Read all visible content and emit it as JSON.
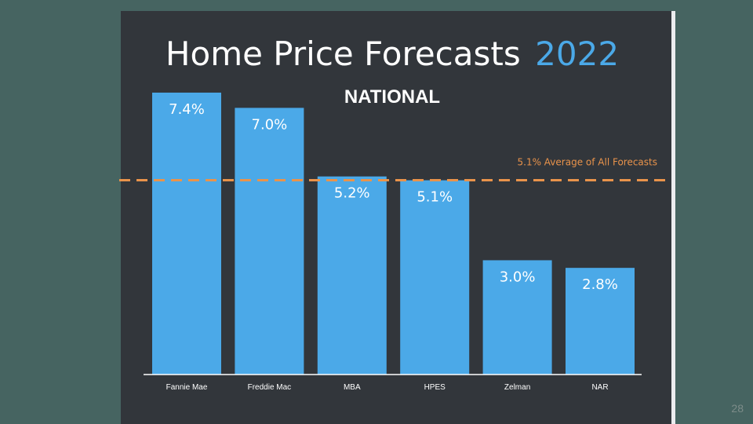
{
  "title": {
    "main": "Home Price Forecasts",
    "year": "2022"
  },
  "subtitle": "NATIONAL",
  "slide_number": "28",
  "colors": {
    "bar": "#4ba9e8",
    "average_line": "#e9934b",
    "background": "#32363b",
    "year": "#4ba9e8"
  },
  "chart_data": {
    "type": "bar",
    "categories": [
      "Fannie Mae",
      "Freddie Mac",
      "MBA",
      "HPES",
      "Zelman",
      "NAR"
    ],
    "values": [
      7.4,
      7.0,
      5.2,
      5.1,
      3.0,
      2.8
    ],
    "data_labels": [
      "7.4%",
      "7.0%",
      "5.2%",
      "5.1%",
      "3.0%",
      "2.8%"
    ],
    "average": {
      "value": 5.1,
      "label": "5.1% Average of All Forecasts",
      "style": "dashed"
    },
    "ylim": [
      0,
      8.1
    ],
    "grid": false,
    "legend": false
  }
}
